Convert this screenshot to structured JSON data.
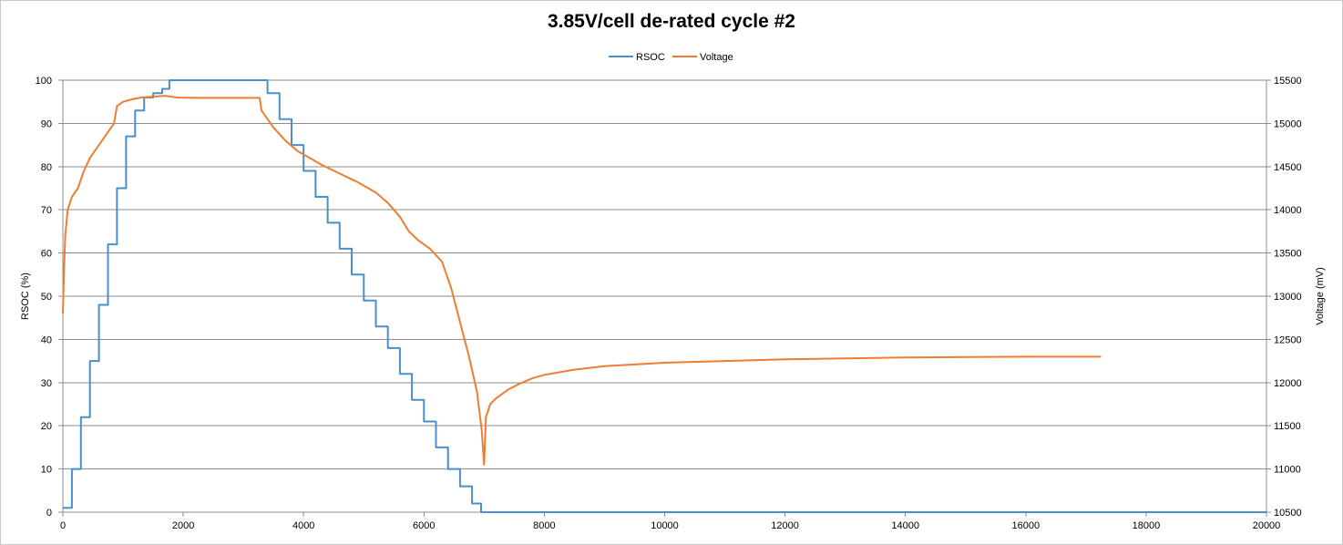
{
  "chart_data": {
    "type": "line",
    "title": "3.85V/cell de-rated cycle #2",
    "xlabel": "",
    "ylabel": "RSOC (%)",
    "y2label": "Voltage (mV)",
    "xlim": [
      0,
      20000
    ],
    "ylim": [
      0,
      100
    ],
    "y2lim": [
      10500,
      15500
    ],
    "xticks": [
      0,
      2000,
      4000,
      6000,
      8000,
      10000,
      12000,
      14000,
      16000,
      18000,
      20000
    ],
    "yticks": [
      0,
      10,
      20,
      30,
      40,
      50,
      60,
      70,
      80,
      90,
      100
    ],
    "y2ticks": [
      10500,
      11000,
      11500,
      12000,
      12500,
      13000,
      13500,
      14000,
      14500,
      15000,
      15500
    ],
    "grid": true,
    "legend_position": "top-center",
    "series": [
      {
        "name": "RSOC",
        "axis": "left",
        "color": "#4a8fc9",
        "stepped": true,
        "points": [
          [
            0,
            1
          ],
          [
            150,
            10
          ],
          [
            300,
            22
          ],
          [
            450,
            35
          ],
          [
            600,
            48
          ],
          [
            750,
            62
          ],
          [
            900,
            75
          ],
          [
            1050,
            87
          ],
          [
            1200,
            93
          ],
          [
            1350,
            96
          ],
          [
            1500,
            97
          ],
          [
            1650,
            98
          ],
          [
            1760,
            98
          ],
          [
            1770,
            100
          ],
          [
            3270,
            100
          ],
          [
            3400,
            97
          ],
          [
            3600,
            91
          ],
          [
            3800,
            85
          ],
          [
            4000,
            79
          ],
          [
            4200,
            73
          ],
          [
            4400,
            67
          ],
          [
            4600,
            61
          ],
          [
            4800,
            55
          ],
          [
            5000,
            49
          ],
          [
            5200,
            43
          ],
          [
            5400,
            38
          ],
          [
            5600,
            32
          ],
          [
            5800,
            26
          ],
          [
            6000,
            21
          ],
          [
            6200,
            15
          ],
          [
            6400,
            10
          ],
          [
            6600,
            6
          ],
          [
            6800,
            2
          ],
          [
            6950,
            0
          ],
          [
            20000,
            0
          ]
        ]
      },
      {
        "name": "Voltage",
        "axis": "right",
        "color": "#ed7d31",
        "points": [
          [
            0,
            12800
          ],
          [
            20,
            13300
          ],
          [
            40,
            13700
          ],
          [
            80,
            14000
          ],
          [
            150,
            14150
          ],
          [
            250,
            14250
          ],
          [
            350,
            14450
          ],
          [
            450,
            14600
          ],
          [
            600,
            14750
          ],
          [
            750,
            14900
          ],
          [
            850,
            15000
          ],
          [
            900,
            15200
          ],
          [
            1000,
            15250
          ],
          [
            1150,
            15280
          ],
          [
            1300,
            15300
          ],
          [
            1500,
            15310
          ],
          [
            1700,
            15320
          ],
          [
            1900,
            15300
          ],
          [
            2200,
            15295
          ],
          [
            2600,
            15295
          ],
          [
            3000,
            15295
          ],
          [
            3270,
            15295
          ],
          [
            3300,
            15150
          ],
          [
            3400,
            15050
          ],
          [
            3500,
            14950
          ],
          [
            3700,
            14800
          ],
          [
            3900,
            14680
          ],
          [
            4100,
            14600
          ],
          [
            4300,
            14520
          ],
          [
            4600,
            14420
          ],
          [
            4900,
            14320
          ],
          [
            5200,
            14200
          ],
          [
            5400,
            14080
          ],
          [
            5600,
            13920
          ],
          [
            5750,
            13750
          ],
          [
            5900,
            13650
          ],
          [
            6100,
            13550
          ],
          [
            6300,
            13400
          ],
          [
            6450,
            13100
          ],
          [
            6600,
            12700
          ],
          [
            6750,
            12300
          ],
          [
            6880,
            11900
          ],
          [
            6960,
            11450
          ],
          [
            7000,
            11050
          ],
          [
            7030,
            11600
          ],
          [
            7100,
            11750
          ],
          [
            7200,
            11820
          ],
          [
            7400,
            11920
          ],
          [
            7600,
            11990
          ],
          [
            7800,
            12050
          ],
          [
            8000,
            12090
          ],
          [
            8500,
            12150
          ],
          [
            9000,
            12190
          ],
          [
            9500,
            12210
          ],
          [
            10000,
            12230
          ],
          [
            11000,
            12250
          ],
          [
            12000,
            12270
          ],
          [
            13000,
            12280
          ],
          [
            14000,
            12290
          ],
          [
            15000,
            12295
          ],
          [
            16000,
            12300
          ],
          [
            17250,
            12300
          ]
        ]
      }
    ]
  }
}
